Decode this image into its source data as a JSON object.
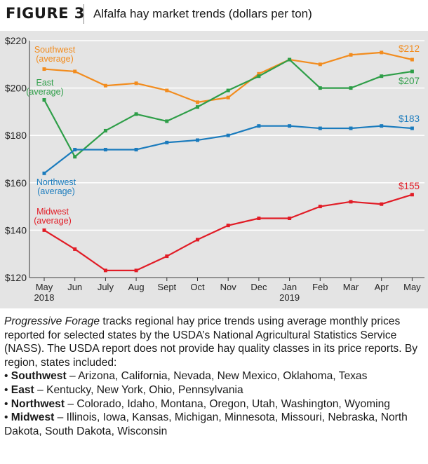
{
  "figure": {
    "label": "FIGURE 3",
    "title": "Alfalfa hay market trends (dollars per ton)"
  },
  "chart_data": {
    "type": "line",
    "categories": [
      "May",
      "Jun",
      "July",
      "Aug",
      "Sept",
      "Oct",
      "Nov",
      "Dec",
      "Jan",
      "Feb",
      "Mar",
      "Apr",
      "May"
    ],
    "year_labels": [
      "2018",
      "",
      "",
      "",
      "",
      "",
      "",
      "",
      "2019",
      "",
      "",
      "",
      ""
    ],
    "ylim": [
      120,
      220
    ],
    "yticks": [
      120,
      140,
      160,
      180,
      200,
      220
    ],
    "ytick_labels": [
      "$120",
      "$140",
      "$160",
      "$180",
      "$200",
      "$220"
    ],
    "grid": true,
    "series": [
      {
        "name": "Southwest (average)",
        "label_lines": [
          "Southwest",
          "(average)"
        ],
        "color": "#f28c1e",
        "values": [
          208,
          207,
          201,
          202,
          199,
          194,
          196,
          206,
          212,
          210,
          214,
          215,
          212
        ],
        "end_label": "$212"
      },
      {
        "name": "East (average)",
        "label_lines": [
          "East",
          "(average)"
        ],
        "color": "#2e9e48",
        "values": [
          195,
          171,
          182,
          189,
          186,
          192,
          199,
          205,
          212,
          200,
          200,
          205,
          207
        ],
        "end_label": "$207"
      },
      {
        "name": "Northwest (average)",
        "label_lines": [
          "Northwest",
          "(average)"
        ],
        "color": "#1a7bbd",
        "values": [
          164,
          174,
          174,
          174,
          177,
          178,
          180,
          184,
          184,
          183,
          183,
          184,
          183
        ],
        "end_label": "$183"
      },
      {
        "name": "Midwest (average)",
        "label_lines": [
          "Midwest",
          "(average)"
        ],
        "color": "#e11c26",
        "values": [
          140,
          132,
          123,
          123,
          129,
          136,
          142,
          145,
          145,
          150,
          152,
          151,
          155
        ],
        "end_label": "$155"
      }
    ]
  },
  "caption": {
    "intro_italic": "Progressive Forage",
    "intro_rest": " tracks regional hay price trends using average monthly prices reported for selected states by the USDA’s National Agricultural Statistics Service (NASS). The USDA report does not provide hay quality classes in its price reports. By region, states included:",
    "bullets": [
      {
        "region": "Southwest",
        "states": " – Arizona, California, Nevada, New Mexico, Oklahoma, Texas"
      },
      {
        "region": "East",
        "states": " – Kentucky, New York, Ohio, Pennsylvania"
      },
      {
        "region": "Northwest",
        "states": " – Colorado, Idaho, Montana, Oregon, Utah, Washington, Wyoming"
      },
      {
        "region": "Midwest",
        "states": " – Illinois, Iowa, Kansas, Michigan, Minnesota, Missouri, Nebraska, North Dakota, South Dakota, Wisconsin"
      }
    ]
  }
}
